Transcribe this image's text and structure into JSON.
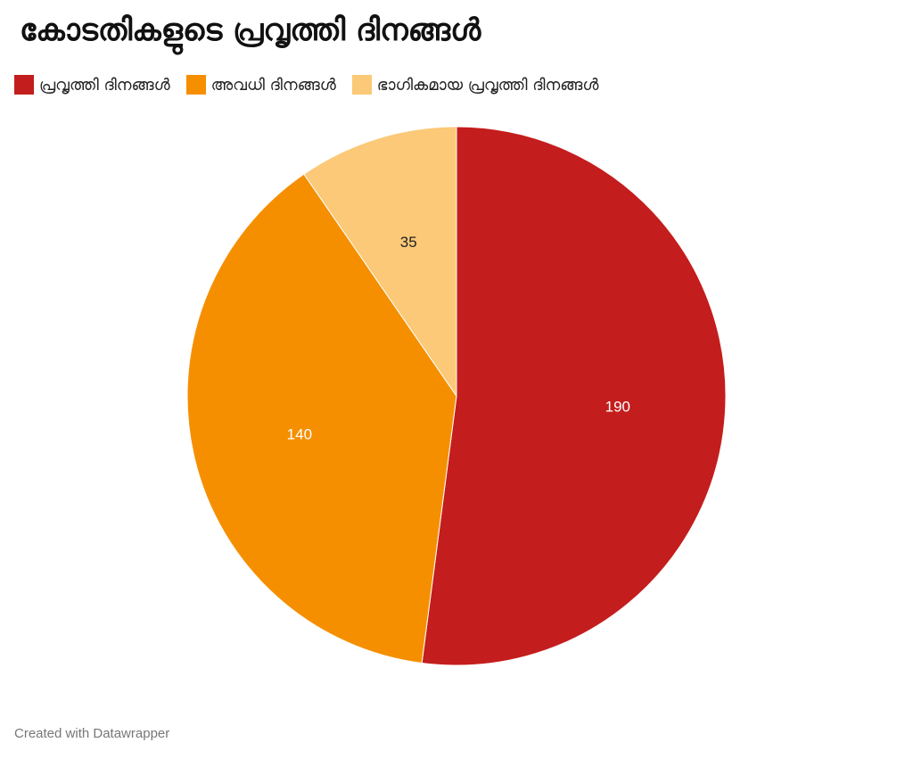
{
  "chart_data": {
    "type": "pie",
    "title": "കോടതികളുടെ പ്രവൃത്തി ദിനങ്ങൾ",
    "categories": [
      "പ്രവൃത്തി ദിനങ്ങൾ",
      "അവധി ദിനങ്ങൾ",
      "ഭാഗികമായ പ്രവൃത്തി ദിനങ്ങൾ"
    ],
    "values": [
      190,
      140,
      35
    ],
    "colors": [
      "#c41d1d",
      "#f58f00",
      "#fbc977"
    ],
    "label_colors": [
      "#ffffff",
      "#ffffff",
      "#222222"
    ],
    "legend_position": "top-left"
  },
  "footer": "Created with Datawrapper"
}
